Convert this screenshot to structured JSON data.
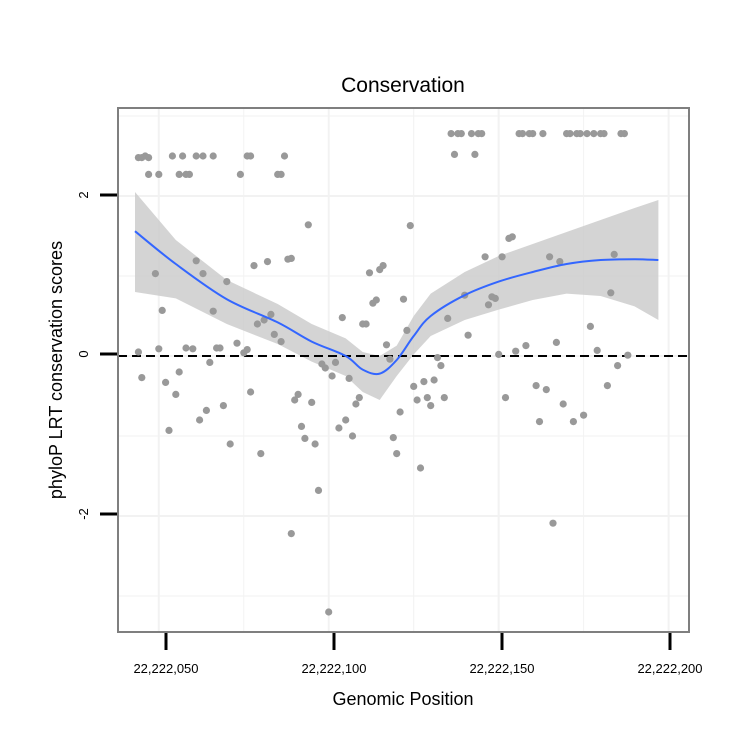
{
  "chart_data": {
    "type": "scatter",
    "title": "Conservation",
    "xlabel": "Genomic Position",
    "ylabel": "phyloP LRT conservation scores",
    "xlim": [
      22222038,
      22222206
    ],
    "ylim": [
      -3.45,
      3.1
    ],
    "x_ticks": [
      22222050,
      22222100,
      22222150,
      22222200
    ],
    "x_tick_labels": [
      "22,222,050",
      "22,222,100",
      "22,222,150",
      "22,222,200"
    ],
    "y_ticks": [
      -2,
      0,
      2
    ],
    "y_tick_labels": [
      "-2",
      "0",
      "2"
    ],
    "grid": true,
    "hline": {
      "y": 0,
      "style": "dashed",
      "color": "#000000"
    },
    "colors": {
      "points": "#999999",
      "smooth": "#3366ff",
      "ribbon": "#cccccc",
      "panel_border": "#7f7f7f",
      "grid": "#f2f2f2"
    },
    "points": [
      [
        22222044,
        2.48
      ],
      [
        22222045,
        2.48
      ],
      [
        22222046,
        2.5
      ],
      [
        22222047,
        2.48
      ],
      [
        22222047,
        2.27
      ],
      [
        22222050,
        2.27
      ],
      [
        22222054,
        2.5
      ],
      [
        22222056,
        2.27
      ],
      [
        22222057,
        2.5
      ],
      [
        22222058,
        2.27
      ],
      [
        22222059,
        2.27
      ],
      [
        22222061,
        2.5
      ],
      [
        22222063,
        2.5
      ],
      [
        22222066,
        2.5
      ],
      [
        22222074,
        2.27
      ],
      [
        22222076,
        2.5
      ],
      [
        22222077,
        2.5
      ],
      [
        22222085,
        2.27
      ],
      [
        22222086,
        2.27
      ],
      [
        22222087,
        2.5
      ],
      [
        22222089,
        1.22
      ],
      [
        22222044,
        0.05
      ],
      [
        22222045,
        -0.27
      ],
      [
        22222049,
        1.03
      ],
      [
        22222050,
        0.09
      ],
      [
        22222051,
        0.57
      ],
      [
        22222052,
        -0.33
      ],
      [
        22222053,
        -0.93
      ],
      [
        22222055,
        -0.48
      ],
      [
        22222056,
        -0.2
      ],
      [
        22222058,
        0.1
      ],
      [
        22222060,
        0.09
      ],
      [
        22222061,
        1.19
      ],
      [
        22222062,
        -0.8
      ],
      [
        22222063,
        1.03
      ],
      [
        22222064,
        -0.68
      ],
      [
        22222065,
        -0.08
      ],
      [
        22222066,
        0.56
      ],
      [
        22222067,
        0.1
      ],
      [
        22222068,
        0.1
      ],
      [
        22222069,
        -0.62
      ],
      [
        22222070,
        0.93
      ],
      [
        22222071,
        -1.1
      ],
      [
        22222073,
        0.16
      ],
      [
        22222075,
        0.04
      ],
      [
        22222076,
        0.08
      ],
      [
        22222077,
        -0.45
      ],
      [
        22222078,
        1.13
      ],
      [
        22222079,
        0.4
      ],
      [
        22222080,
        -1.22
      ],
      [
        22222081,
        0.45
      ],
      [
        22222082,
        1.18
      ],
      [
        22222083,
        0.52
      ],
      [
        22222084,
        0.27
      ],
      [
        22222086,
        0.18
      ],
      [
        22222088,
        1.21
      ],
      [
        22222089,
        -2.22
      ],
      [
        22222090,
        -0.55
      ],
      [
        22222091,
        -0.48
      ],
      [
        22222092,
        -0.88
      ],
      [
        22222093,
        -1.03
      ],
      [
        22222094,
        1.64
      ],
      [
        22222095,
        -0.58
      ],
      [
        22222096,
        -1.1
      ],
      [
        22222097,
        -1.68
      ],
      [
        22222098,
        -0.1
      ],
      [
        22222099,
        -0.15
      ],
      [
        22222100,
        -3.2
      ],
      [
        22222101,
        -0.25
      ],
      [
        22222102,
        -0.08
      ],
      [
        22222103,
        -0.9
      ],
      [
        22222104,
        0.48
      ],
      [
        22222105,
        -0.8
      ],
      [
        22222106,
        -0.28
      ],
      [
        22222107,
        -1.0
      ],
      [
        22222108,
        -0.6
      ],
      [
        22222109,
        -0.52
      ],
      [
        22222110,
        0.4
      ],
      [
        22222111,
        0.4
      ],
      [
        22222112,
        1.04
      ],
      [
        22222113,
        0.66
      ],
      [
        22222114,
        0.7
      ],
      [
        22222115,
        1.08
      ],
      [
        22222116,
        1.13
      ],
      [
        22222117,
        0.14
      ],
      [
        22222118,
        -0.04
      ],
      [
        22222119,
        -1.02
      ],
      [
        22222120,
        -1.22
      ],
      [
        22222121,
        -0.7
      ],
      [
        22222122,
        0.71
      ],
      [
        22222123,
        0.32
      ],
      [
        22222124,
        1.63
      ],
      [
        22222125,
        -0.38
      ],
      [
        22222126,
        -0.55
      ],
      [
        22222127,
        -1.4
      ],
      [
        22222128,
        -0.32
      ],
      [
        22222129,
        -0.52
      ],
      [
        22222130,
        -0.62
      ],
      [
        22222131,
        -0.3
      ],
      [
        22222132,
        -0.02
      ],
      [
        22222133,
        -0.12
      ],
      [
        22222134,
        -0.52
      ],
      [
        22222135,
        0.47
      ],
      [
        22222136,
        2.78
      ],
      [
        22222137,
        2.52
      ],
      [
        22222138,
        2.78
      ],
      [
        22222139,
        2.78
      ],
      [
        22222140,
        0.76
      ],
      [
        22222141,
        0.26
      ],
      [
        22222142,
        2.78
      ],
      [
        22222143,
        2.52
      ],
      [
        22222144,
        2.78
      ],
      [
        22222145,
        2.78
      ],
      [
        22222146,
        1.24
      ],
      [
        22222147,
        0.64
      ],
      [
        22222148,
        0.74
      ],
      [
        22222149,
        0.72
      ],
      [
        22222150,
        0.02
      ],
      [
        22222151,
        1.24
      ],
      [
        22222152,
        -0.52
      ],
      [
        22222153,
        1.47
      ],
      [
        22222154,
        1.49
      ],
      [
        22222155,
        0.06
      ],
      [
        22222156,
        2.78
      ],
      [
        22222157,
        2.78
      ],
      [
        22222158,
        0.13
      ],
      [
        22222159,
        2.78
      ],
      [
        22222160,
        2.78
      ],
      [
        22222161,
        -0.37
      ],
      [
        22222162,
        -0.82
      ],
      [
        22222163,
        2.78
      ],
      [
        22222164,
        -0.42
      ],
      [
        22222165,
        1.24
      ],
      [
        22222166,
        -2.09
      ],
      [
        22222167,
        0.17
      ],
      [
        22222168,
        1.18
      ],
      [
        22222169,
        -0.6
      ],
      [
        22222170,
        2.78
      ],
      [
        22222171,
        2.78
      ],
      [
        22222172,
        -0.82
      ],
      [
        22222173,
        2.78
      ],
      [
        22222174,
        2.78
      ],
      [
        22222175,
        -0.74
      ],
      [
        22222176,
        2.78
      ],
      [
        22222177,
        0.37
      ],
      [
        22222178,
        2.78
      ],
      [
        22222179,
        0.07
      ],
      [
        22222180,
        2.78
      ],
      [
        22222181,
        2.78
      ],
      [
        22222182,
        -0.37
      ],
      [
        22222183,
        0.79
      ],
      [
        22222184,
        1.27
      ],
      [
        22222185,
        -0.12
      ],
      [
        22222186,
        2.78
      ],
      [
        22222187,
        2.78
      ],
      [
        22222188,
        0.01
      ]
    ],
    "smooth": {
      "x": [
        22222043,
        22222055,
        22222070,
        22222085,
        22222095,
        22222105,
        22222110,
        22222115,
        22222120,
        22222125,
        22222130,
        22222140,
        22222150,
        22222160,
        22222170,
        22222180,
        22222190,
        22222197
      ],
      "y": [
        1.56,
        1.15,
        0.71,
        0.42,
        0.18,
        0.0,
        -0.17,
        -0.22,
        -0.05,
        0.25,
        0.5,
        0.76,
        0.93,
        1.05,
        1.15,
        1.2,
        1.21,
        1.2
      ],
      "upper": [
        2.05,
        1.45,
        0.95,
        0.65,
        0.4,
        0.22,
        0.05,
        0.0,
        0.13,
        0.5,
        0.78,
        1.05,
        1.25,
        1.4,
        1.55,
        1.7,
        1.85,
        1.95
      ],
      "lower": [
        0.8,
        0.72,
        0.4,
        0.15,
        -0.07,
        -0.25,
        -0.45,
        -0.55,
        -0.25,
        0.02,
        0.25,
        0.45,
        0.58,
        0.7,
        0.78,
        0.75,
        0.62,
        0.45
      ]
    }
  }
}
